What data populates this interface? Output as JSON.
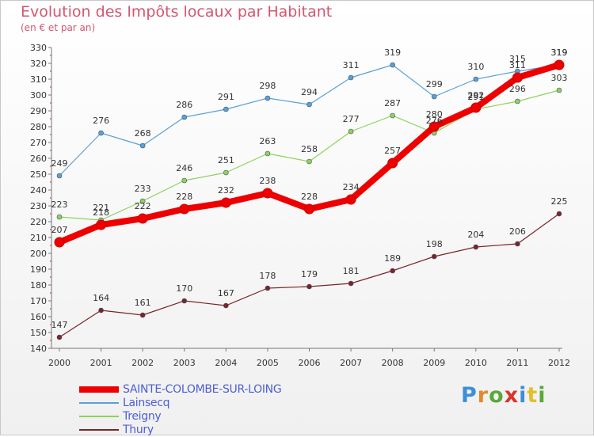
{
  "title": "Evolution des Impôts locaux par Habitant",
  "subtitle": "(en € et par an)",
  "brand": {
    "letters": [
      "P",
      "r",
      "o",
      "x",
      "i",
      "t",
      "i"
    ],
    "colors": [
      "#3c8fd8",
      "#e08a2a",
      "#5aa83a",
      "#d8342a",
      "#3c8fd8",
      "#e0c02a",
      "#5aa83a"
    ]
  },
  "chart_data": {
    "type": "line",
    "x": [
      "2000",
      "2001",
      "2002",
      "2003",
      "2004",
      "2005",
      "2006",
      "2007",
      "2008",
      "2009",
      "2010",
      "2011",
      "2012"
    ],
    "ylim": [
      140,
      330
    ],
    "yticks": [
      140,
      150,
      160,
      170,
      180,
      190,
      200,
      210,
      220,
      230,
      240,
      250,
      260,
      270,
      280,
      290,
      300,
      310,
      320,
      330
    ],
    "grid": false,
    "legend_position": "bottom-left",
    "series": [
      {
        "name": "SAINTE-COLOMBE-SUR-LOING",
        "color": "#ee0000",
        "values": [
          207,
          218,
          222,
          228,
          232,
          238,
          228,
          234,
          257,
          280,
          292,
          311,
          319
        ]
      },
      {
        "name": "Lainsecq",
        "color": "#5aa0d8",
        "values": [
          249,
          276,
          268,
          286,
          291,
          298,
          294,
          311,
          319,
          299,
          310,
          315,
          319
        ]
      },
      {
        "name": "Treigny",
        "color": "#8ed25a",
        "values": [
          223,
          221,
          233,
          246,
          251,
          263,
          258,
          277,
          287,
          276,
          291,
          296,
          303
        ]
      },
      {
        "name": "Thury",
        "color": "#7a2428",
        "values": [
          147,
          164,
          161,
          170,
          167,
          178,
          179,
          181,
          189,
          198,
          204,
          206,
          225
        ]
      }
    ]
  }
}
